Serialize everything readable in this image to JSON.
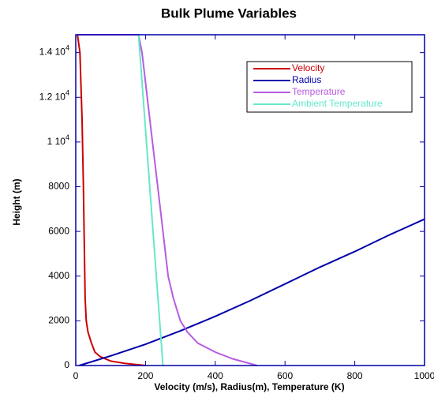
{
  "chart_data": {
    "type": "line",
    "title": "Bulk Plume Variables",
    "x_label": "Velocity (m/s), Radius(m), Temperature (K)",
    "y_label": "Height (m)",
    "xlim": [
      0,
      1000
    ],
    "ylim": [
      0,
      14800
    ],
    "xticks": [
      0,
      200,
      400,
      600,
      800,
      1000
    ],
    "yticks": [
      0,
      2000,
      4000,
      6000,
      8000,
      10000,
      12000,
      14000
    ],
    "ytick_labels": [
      {
        "base": "1 10",
        "exp": "4",
        "tick": 10000
      },
      {
        "base": "1.2 10",
        "exp": "4",
        "tick": 12000
      },
      {
        "base": "1.4 10",
        "exp": "4",
        "tick": 14000
      }
    ],
    "legend_position": "upper right",
    "series": [
      {
        "name": "Velocity",
        "color": "#cc0000",
        "x": [
          200,
          140,
          100,
          70,
          55,
          45,
          35,
          30,
          27,
          25,
          22,
          18,
          12,
          5
        ],
        "y": [
          0,
          100,
          200,
          400,
          600,
          1000,
          1500,
          2000,
          3000,
          5000,
          8000,
          11000,
          14000,
          14800
        ]
      },
      {
        "name": "Radius",
        "color": "#0000aa",
        "x": [
          10,
          100,
          200,
          300,
          400,
          500,
          600,
          700,
          800,
          900,
          1000
        ],
        "y": [
          0,
          430,
          950,
          1550,
          2200,
          2900,
          3650,
          4400,
          5100,
          5850,
          6550
        ]
      },
      {
        "name": "Temperature",
        "color": "#b75ce0",
        "x": [
          520,
          450,
          400,
          350,
          320,
          300,
          280,
          265,
          250,
          235,
          220,
          205,
          190,
          180,
          5
        ],
        "y": [
          0,
          300,
          600,
          1000,
          1500,
          2000,
          3000,
          4000,
          6000,
          8000,
          10000,
          12000,
          14000,
          14800,
          14800
        ]
      },
      {
        "name": "Ambient Temperature",
        "color": "#66e8c8",
        "x": [
          250,
          215,
          180
        ],
        "y": [
          0,
          7400,
          14800
        ]
      }
    ]
  }
}
